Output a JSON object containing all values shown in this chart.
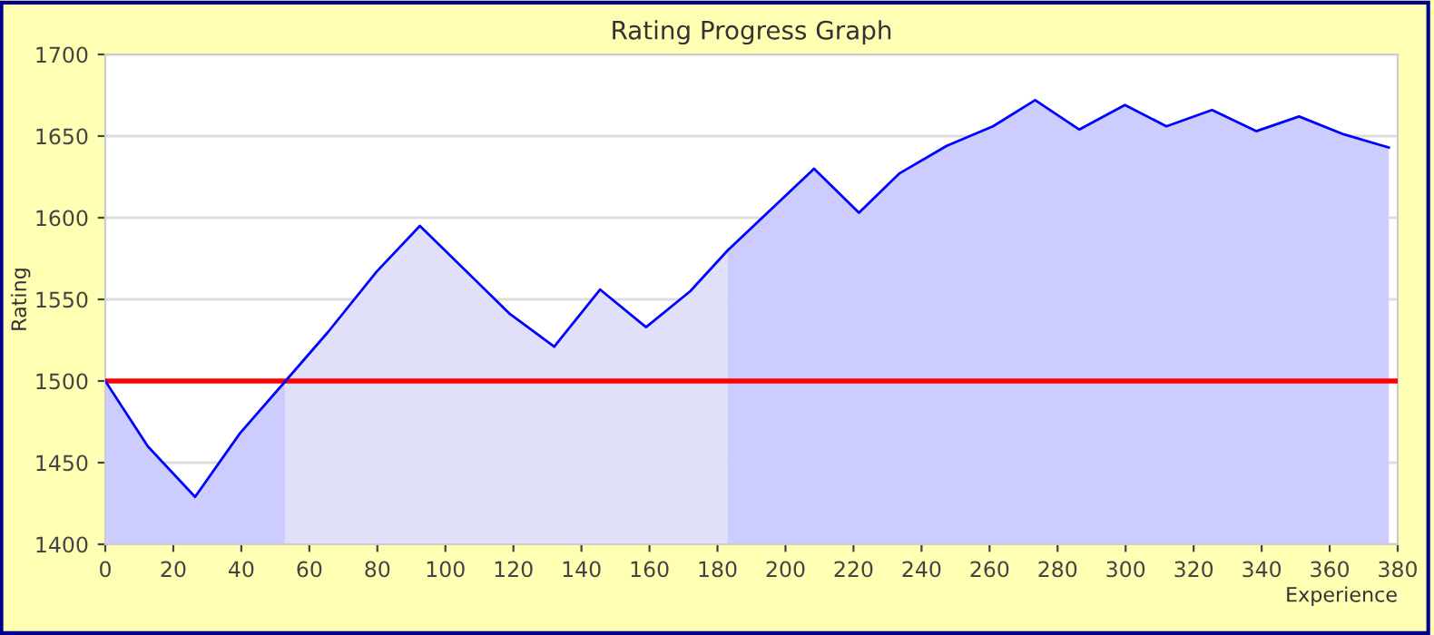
{
  "chart_data": {
    "type": "area",
    "title": "Rating Progress Graph",
    "xlabel": "Experience",
    "ylabel": "Rating",
    "series": [
      {
        "color": "#ccccff",
        "x": [
          0,
          12.5,
          26.4,
          39.6,
          53
        ],
        "values": [
          1500,
          1460,
          1429,
          1468,
          1500
        ]
      },
      {
        "color": "#e0e0fa",
        "x": [
          53,
          65.5,
          79.8,
          92.5,
          119,
          132,
          145.5,
          159,
          172,
          183
        ],
        "values": [
          1500,
          1530,
          1567,
          1595,
          1541,
          1521,
          1556,
          1533,
          1555,
          1580
        ]
      },
      {
        "color": "#ccccff",
        "x": [
          183,
          208.4,
          221.6,
          233.4,
          247.4,
          261,
          273.4,
          286.4,
          299.8,
          312,
          325.4,
          338.4,
          351,
          364.2,
          377.4
        ],
        "values": [
          1580,
          1630,
          1603,
          1627,
          1644,
          1656,
          1672,
          1654,
          1669,
          1656,
          1666,
          1653,
          1662,
          1651,
          1643
        ]
      },
      {
        "type": "line",
        "color": "#0000ff",
        "x": [
          0,
          12.5,
          26.4,
          39.6,
          53,
          65.5,
          79.8,
          92.5,
          119,
          132,
          145.5,
          159,
          172,
          183,
          208.4,
          221.6,
          233.4,
          247.4,
          261,
          273.4,
          286.4,
          299.8,
          312,
          325.4,
          338.4,
          351,
          364.2,
          377.4
        ],
        "values": [
          1500,
          1460,
          1429,
          1468,
          1500,
          1530,
          1567,
          1595,
          1541,
          1521,
          1556,
          1533,
          1555,
          1580,
          1630,
          1603,
          1627,
          1644,
          1656,
          1672,
          1654,
          1669,
          1656,
          1666,
          1653,
          1662,
          1651,
          1643
        ]
      }
    ],
    "ref_lines": [
      {
        "axis": "y",
        "value": 1500,
        "color": "#ff0000"
      }
    ],
    "xlim": [
      0,
      380
    ],
    "xticks": [
      0,
      20,
      40,
      60,
      80,
      100,
      120,
      140,
      160,
      180,
      200,
      220,
      240,
      260,
      280,
      300,
      320,
      340,
      360,
      380
    ],
    "ylim": [
      1400,
      1700
    ],
    "yticks": [
      1400,
      1450,
      1500,
      1550,
      1600,
      1650,
      1700
    ],
    "grid": "y",
    "legend": false,
    "marker": "none",
    "line_style": "solid"
  }
}
